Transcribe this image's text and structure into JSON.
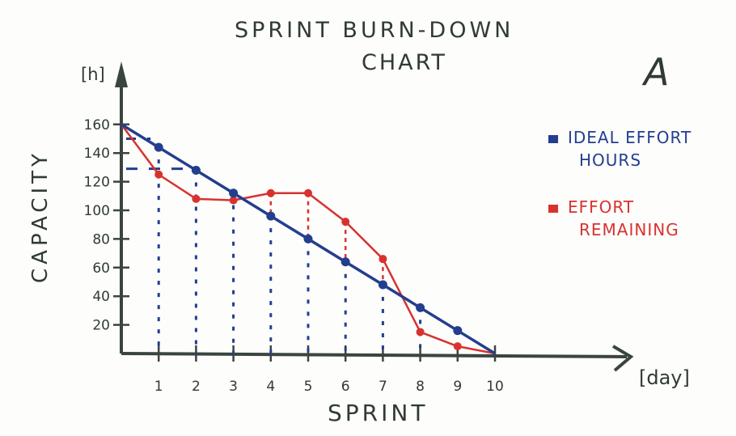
{
  "title_line1": "SPRINT BURN-DOWN",
  "title_line2": "CHART",
  "panel_letter": "A",
  "legend": {
    "ideal": {
      "label_line1": "IDEAL EFFORT",
      "label_line2": "HOURS",
      "color": "#233e8f"
    },
    "effort": {
      "label_line1": "EFFORT",
      "label_line2": "REMAINING",
      "color": "#d8322f"
    }
  },
  "axes": {
    "ylabel": "CAPACITY",
    "yunit": "[h]",
    "xlabel": "SPRINT",
    "xunit": "[day]"
  },
  "chart_data": {
    "type": "line",
    "title": "SPRINT BURN-DOWN CHART",
    "xlabel": "SPRINT [day]",
    "ylabel": "CAPACITY [h]",
    "x": [
      0,
      1,
      2,
      3,
      4,
      5,
      6,
      7,
      8,
      9,
      10
    ],
    "x_tick_labels": [
      "1",
      "2",
      "3",
      "4",
      "5",
      "6",
      "7",
      "8",
      "9",
      "10"
    ],
    "y_tick_labels": [
      "20",
      "40",
      "60",
      "80",
      "100",
      "120",
      "140",
      "160"
    ],
    "ylim": [
      0,
      175
    ],
    "xlim": [
      0,
      13
    ],
    "grid": false,
    "legend_position": "right",
    "series": [
      {
        "name": "IDEAL EFFORT HOURS",
        "color": "#233e8f",
        "values": [
          160,
          144,
          128,
          112,
          96,
          80,
          64,
          48,
          32,
          16,
          0
        ]
      },
      {
        "name": "EFFORT REMAINING",
        "color": "#d8322f",
        "values": [
          160,
          125,
          108,
          107,
          112,
          112,
          92,
          66,
          15,
          5,
          0
        ]
      }
    ],
    "annotations": [
      "dashed guide lines from day 1 and day 2 points to y-axis (~150 and ~130)",
      "dotted verticals from each data point to x-axis"
    ]
  }
}
